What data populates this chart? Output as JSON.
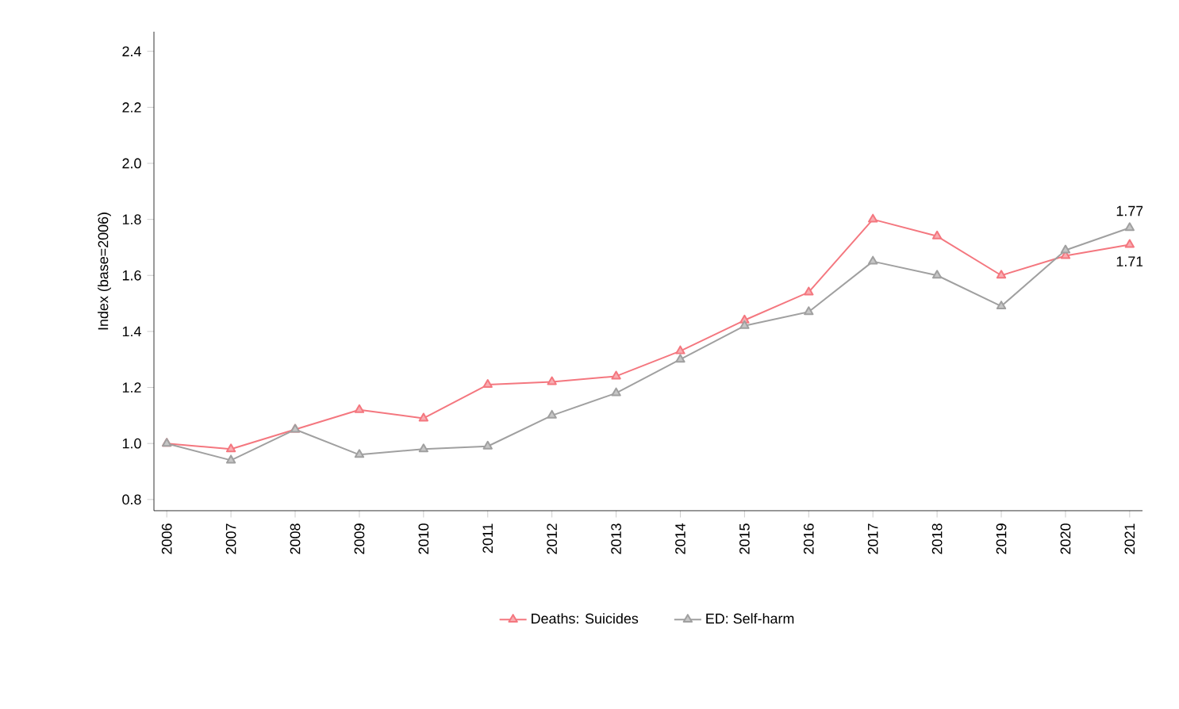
{
  "chart_data": {
    "type": "line",
    "ylabel": "Index (base=2006)",
    "categories": [
      "2006",
      "2007",
      "2008",
      "2009",
      "2010",
      "2011",
      "2012",
      "2013",
      "2014",
      "2015",
      "2016",
      "2017",
      "2018",
      "2019",
      "2020",
      "2021"
    ],
    "series": [
      {
        "name": "Deaths: Suicides",
        "color": "#f4777f",
        "values": [
          1.0,
          0.98,
          1.05,
          1.12,
          1.09,
          1.21,
          1.22,
          1.24,
          1.33,
          1.44,
          1.54,
          1.8,
          1.74,
          1.6,
          1.67,
          1.71
        ]
      },
      {
        "name": "ED: Self-harm",
        "color": "#a0a0a0",
        "values": [
          1.0,
          0.94,
          1.05,
          0.96,
          0.98,
          0.99,
          1.1,
          1.18,
          1.3,
          1.42,
          1.47,
          1.65,
          1.6,
          1.49,
          1.69,
          1.77
        ]
      }
    ],
    "ylim": [
      0.76,
      2.47
    ],
    "yticks": [
      0.8,
      {
        "value": 1,
        "label": "1.0"
      },
      1.2,
      1.4,
      1.6,
      1.8,
      {
        "value": 2,
        "label": "2.0"
      },
      2.2,
      2.4
    ],
    "marker": "triangle",
    "line_style": "solid",
    "legend": "bottom",
    "grid": false,
    "annotations": [
      {
        "text": "1.77",
        "x": "2021",
        "y": 1.77
      },
      {
        "text": "1.71",
        "x": "2021",
        "y": 1.71
      }
    ]
  }
}
